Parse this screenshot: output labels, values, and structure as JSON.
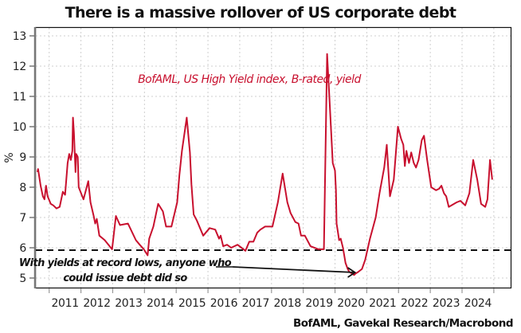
{
  "chart_data": {
    "type": "line",
    "title": "There is a massive rollover of US corporate debt",
    "xlabel": "",
    "ylabel": "%",
    "ylim": [
      5,
      13
    ],
    "xlim": [
      2010.58,
      2025.53
    ],
    "yticks": [
      5,
      6,
      7,
      8,
      9,
      10,
      11,
      12,
      13
    ],
    "xticks": [
      "2011",
      "2012",
      "2013",
      "2014",
      "2015",
      "2016",
      "2017",
      "2018",
      "2019",
      "2020",
      "2021",
      "2022",
      "2023",
      "2024"
    ],
    "grid": true,
    "source": "BofAML, Gavekal Research/Macrobond",
    "series": [
      {
        "name": "BofAML, US High Yield index, B-rated, yield",
        "color": "#c8102e",
        "x": [
          2010.63,
          2010.65,
          2010.73,
          2010.8,
          2010.85,
          2010.9,
          2010.95,
          2011.05,
          2011.13,
          2011.23,
          2011.33,
          2011.43,
          2011.5,
          2011.58,
          2011.63,
          2011.68,
          2011.73,
          2011.75,
          2011.78,
          2011.83,
          2011.85,
          2011.9,
          2011.93,
          2012.08,
          2012.23,
          2012.3,
          2012.4,
          2012.45,
          2012.5,
          2012.58,
          2012.75,
          2012.98,
          2013.1,
          2013.23,
          2013.48,
          2013.73,
          2013.85,
          2013.98,
          2014.1,
          2014.15,
          2014.28,
          2014.43,
          2014.58,
          2014.68,
          2014.85,
          2015.03,
          2015.1,
          2015.18,
          2015.33,
          2015.43,
          2015.48,
          2015.55,
          2015.65,
          2015.85,
          2016.05,
          2016.23,
          2016.35,
          2016.4,
          2016.48,
          2016.6,
          2016.73,
          2016.93,
          2017.18,
          2017.3,
          2017.43,
          2017.55,
          2017.65,
          2017.8,
          2018.03,
          2018.2,
          2018.35,
          2018.5,
          2018.6,
          2018.75,
          2018.85,
          2018.93,
          2019.05,
          2019.23,
          2019.48,
          2019.65,
          2019.75,
          2019.83,
          2019.93,
          2020.0,
          2020.03,
          2020.05,
          2020.08,
          2020.13,
          2020.18,
          2020.25,
          2020.33,
          2020.4,
          2020.45,
          2020.53,
          2020.6,
          2020.65,
          2020.73,
          2020.85,
          2020.95,
          2021.1,
          2021.28,
          2021.4,
          2021.55,
          2021.63,
          2021.73,
          2021.85,
          2021.98,
          2022.08,
          2022.15,
          2022.2,
          2022.25,
          2022.33,
          2022.4,
          2022.48,
          2022.55,
          2022.63,
          2022.73,
          2022.8,
          2022.9,
          2023.03,
          2023.18,
          2023.28,
          2023.35,
          2023.43,
          2023.5,
          2023.58,
          2023.83,
          2023.95,
          2024.1,
          2024.23,
          2024.35,
          2024.48,
          2024.6,
          2024.73,
          2024.8,
          2024.88,
          2024.95
        ],
        "y": [
          8.5,
          8.6,
          8.05,
          7.7,
          7.6,
          8.05,
          7.7,
          7.45,
          7.4,
          7.3,
          7.35,
          7.85,
          7.75,
          8.8,
          9.1,
          8.9,
          9.2,
          10.3,
          9.8,
          8.5,
          9.1,
          9.0,
          8.0,
          7.6,
          8.2,
          7.5,
          7.05,
          6.8,
          6.95,
          6.4,
          6.25,
          5.95,
          7.05,
          6.75,
          6.8,
          6.25,
          6.1,
          5.95,
          5.75,
          6.3,
          6.7,
          7.45,
          7.2,
          6.7,
          6.7,
          7.5,
          8.4,
          9.2,
          10.3,
          9.15,
          8.1,
          7.1,
          6.9,
          6.4,
          6.65,
          6.6,
          6.3,
          6.4,
          6.05,
          6.1,
          6.0,
          6.1,
          5.9,
          6.2,
          6.2,
          6.5,
          6.6,
          6.7,
          6.7,
          7.5,
          8.45,
          7.5,
          7.15,
          6.85,
          6.8,
          6.4,
          6.4,
          6.05,
          5.95,
          5.95,
          12.4,
          10.8,
          8.8,
          8.55,
          7.9,
          6.8,
          6.6,
          6.25,
          6.3,
          6.0,
          5.5,
          5.3,
          5.2,
          5.15,
          5.1,
          5.15,
          5.2,
          5.3,
          5.6,
          6.3,
          7.0,
          7.8,
          8.65,
          9.4,
          7.7,
          8.25,
          10.0,
          9.6,
          9.4,
          8.7,
          9.2,
          8.8,
          9.15,
          8.8,
          8.65,
          8.9,
          9.55,
          9.7,
          8.9,
          8.0,
          7.9,
          7.95,
          8.05,
          7.8,
          7.7,
          7.35,
          7.5,
          7.55,
          7.4,
          7.8,
          8.9,
          8.25,
          7.45,
          7.35,
          7.6,
          8.9,
          8.25
        ]
      }
    ],
    "reference_line": {
      "value": 5.92,
      "style": "dashed",
      "color": "#111111"
    },
    "annotations": [
      {
        "lines": [
          "With yields at record lows, anyone who",
          "could issue debt did so"
        ],
        "arrow_to": {
          "x": 2020.83,
          "y": 5.2
        }
      }
    ]
  }
}
